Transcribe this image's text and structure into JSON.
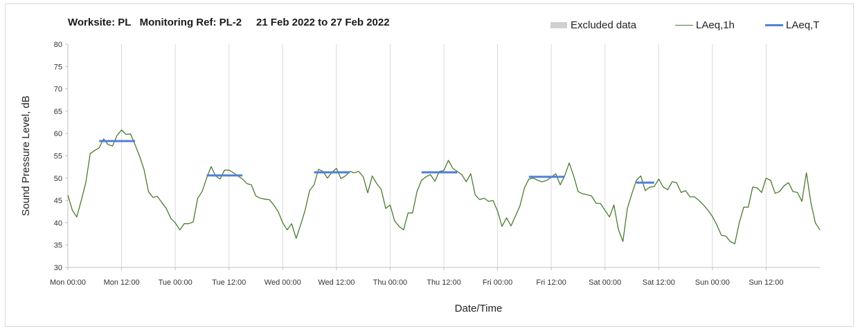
{
  "title": "Worksite: PL   Monitoring Ref: PL-2     21 Feb 2022 to 27 Feb 2022",
  "legend": {
    "excluded": "Excluded data",
    "hourly": "LAeq,1h",
    "period": "LAeq,T"
  },
  "colors": {
    "hourly": "#4a7a2e",
    "period": "#4f7fd9",
    "excluded": "#d0d0d0",
    "grid": "#d9d9d9"
  },
  "chart_data": {
    "type": "line",
    "xlabel": "Date/Time",
    "ylabel": "Sound Pressure Level, dB",
    "ylim": [
      30,
      80
    ],
    "yticks": [
      30,
      35,
      40,
      45,
      50,
      55,
      60,
      65,
      70,
      75,
      80
    ],
    "xlim_hours": [
      0,
      168
    ],
    "xticks": [
      {
        "hour": 0,
        "label": "Mon 00:00"
      },
      {
        "hour": 12,
        "label": "Mon 12:00"
      },
      {
        "hour": 24,
        "label": "Tue 00:00"
      },
      {
        "hour": 36,
        "label": "Tue 12:00"
      },
      {
        "hour": 48,
        "label": "Wed 00:00"
      },
      {
        "hour": 60,
        "label": "Wed 12:00"
      },
      {
        "hour": 72,
        "label": "Thu 00:00"
      },
      {
        "hour": 84,
        "label": "Thu 12:00"
      },
      {
        "hour": 96,
        "label": "Fri 00:00"
      },
      {
        "hour": 108,
        "label": "Fri 12:00"
      },
      {
        "hour": 120,
        "label": "Sat 00:00"
      },
      {
        "hour": 132,
        "label": "Sat 12:00"
      },
      {
        "hour": 144,
        "label": "Sun 00:00"
      },
      {
        "hour": 156,
        "label": "Sun 12:00"
      }
    ],
    "grid": true,
    "legend_position": "top-right",
    "series": [
      {
        "name": "LAeq,1h",
        "x": [
          0,
          1,
          2,
          3,
          4,
          5,
          6,
          7,
          8,
          9,
          10,
          11,
          12,
          13,
          14,
          15,
          16,
          17,
          18,
          19,
          20,
          21,
          22,
          23,
          24,
          25,
          26,
          27,
          28,
          29,
          30,
          31,
          32,
          33,
          34,
          35,
          36,
          37,
          38,
          39,
          40,
          41,
          42,
          43,
          44,
          45,
          46,
          47,
          48,
          49,
          50,
          51,
          52,
          53,
          54,
          55,
          56,
          57,
          58,
          59,
          60,
          61,
          62,
          63,
          64,
          65,
          66,
          67,
          68,
          69,
          70,
          71,
          72,
          73,
          74,
          75,
          76,
          77,
          78,
          79,
          80,
          81,
          82,
          83,
          84,
          85,
          86,
          87,
          88,
          89,
          90,
          91,
          92,
          93,
          94,
          95,
          96,
          97,
          98,
          99,
          100,
          101,
          102,
          103,
          104,
          105,
          106,
          107,
          108,
          109,
          110,
          111,
          112,
          113,
          114,
          115,
          116,
          117,
          118,
          119,
          120,
          121,
          122,
          123,
          124,
          125,
          126,
          127,
          128,
          129,
          130,
          131,
          132,
          133,
          134,
          135,
          136,
          137,
          138,
          139,
          140,
          141,
          142,
          143,
          144,
          145,
          146,
          147,
          148,
          149,
          150,
          151,
          152,
          153,
          154,
          155,
          156,
          157,
          158,
          159,
          160,
          161,
          162,
          163,
          164,
          165,
          166,
          167,
          168
        ],
        "y": [
          46.2,
          42.8,
          41.3,
          45.0,
          49.0,
          55.5,
          56.2,
          56.8,
          58.8,
          57.5,
          57.2,
          59.6,
          60.8,
          59.8,
          59.9,
          57.5,
          55.0,
          52.0,
          47.0,
          45.7,
          45.9,
          44.5,
          43.2,
          41.0,
          40.0,
          38.4,
          39.8,
          39.8,
          40.2,
          45.5,
          47.0,
          50.0,
          52.6,
          50.5,
          49.8,
          51.8,
          51.8,
          51.2,
          50.5,
          49.8,
          48.8,
          48.5,
          46.0,
          45.5,
          45.3,
          45.2,
          44.0,
          42.5,
          40.0,
          38.4,
          39.8,
          36.5,
          39.5,
          42.8,
          47.2,
          48.5,
          52.0,
          51.5,
          50.0,
          51.3,
          52.2,
          49.9,
          50.5,
          51.5,
          51.2,
          51.5,
          50.3,
          46.7,
          50.5,
          48.8,
          47.5,
          43.2,
          44.0,
          40.4,
          39.2,
          38.4,
          42.2,
          42.2,
          47.0,
          49.5,
          50.3,
          50.8,
          49.3,
          51.5,
          51.7,
          54.0,
          52.2,
          51.5,
          50.8,
          49.2,
          51.0,
          46.2,
          45.2,
          45.5,
          44.8,
          45.0,
          42.6,
          39.2,
          41.1,
          39.3,
          41.5,
          43.8,
          47.8,
          49.8,
          50.0,
          49.5,
          49.2,
          49.5,
          50.2,
          51.0,
          48.5,
          50.5,
          53.4,
          50.5,
          47.0,
          46.5,
          46.3,
          46.0,
          44.4,
          44.3,
          42.8,
          41.3,
          44.0,
          38.5,
          35.8,
          43.2,
          46.5,
          49.5,
          50.5,
          47.2,
          48.0,
          48.1,
          49.8,
          48.0,
          47.4,
          49.2,
          49.0,
          46.8,
          47.2,
          45.8,
          45.8,
          45.0,
          44.0,
          42.8,
          41.4,
          39.5,
          37.2,
          37.0,
          35.8,
          35.3,
          40.0,
          43.5,
          43.5,
          48.0,
          47.8,
          46.8,
          50.0,
          49.5,
          46.6,
          47.0,
          48.3,
          49.0,
          47.0,
          46.8,
          44.8,
          51.2,
          44.5,
          40.0,
          38.4
        ]
      },
      {
        "name": "LAeq,T",
        "segments": [
          {
            "x": [
              7,
              15
            ],
            "y": 58.3
          },
          {
            "x": [
              31,
              39
            ],
            "y": 50.6
          },
          {
            "x": [
              55,
              63
            ],
            "y": 51.3
          },
          {
            "x": [
              79,
              87
            ],
            "y": 51.3
          },
          {
            "x": [
              103,
              111
            ],
            "y": 50.3
          },
          {
            "x": [
              127,
              131
            ],
            "y": 49.0
          }
        ]
      }
    ]
  }
}
